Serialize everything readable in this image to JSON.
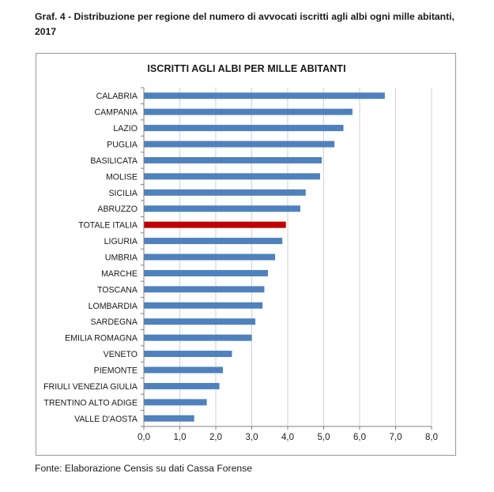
{
  "caption": {
    "line1": "Graf. 4 - Distribuzione per regione del numero di avvocati iscritti agli albi ogni mille abitanti,",
    "line2": "2017"
  },
  "source": "Fonte: Elaborazione Censis su dati Cassa Forense",
  "colors": {
    "bar": "#4f81bd",
    "highlight": "#c00000",
    "grid": "#d0d0d0",
    "axis": "#808080"
  },
  "chart_data": {
    "type": "bar",
    "orientation": "horizontal",
    "title": "ISCRITTI AGLI ALBI PER MILLE ABITANTI",
    "xlabel": "",
    "ylabel": "",
    "xlim": [
      0,
      8
    ],
    "grid": true,
    "legend": "none",
    "x_ticks": [
      "0,0",
      "1,0",
      "2,0",
      "3,0",
      "4,0",
      "5,0",
      "6,0",
      "7,0",
      "8,0"
    ],
    "categories": [
      "CALABRIA",
      "CAMPANIA",
      "LAZIO",
      "PUGLIA",
      "BASILICATA",
      "MOLISE",
      "SICILIA",
      "ABRUZZO",
      "TOTALE ITALIA",
      "LIGURIA",
      "UMBRIA",
      "MARCHE",
      "TOSCANA",
      "LOMBARDIA",
      "SARDEGNA",
      "EMILIA ROMAGNA",
      "VENETO",
      "PIEMONTE",
      "FRIULI VENEZIA GIULIA",
      "TRENTINO ALTO ADIGE",
      "VALLE D'AOSTA"
    ],
    "values": [
      6.7,
      5.8,
      5.55,
      5.3,
      4.95,
      4.9,
      4.5,
      4.35,
      3.95,
      3.85,
      3.65,
      3.45,
      3.35,
      3.3,
      3.1,
      3.0,
      2.45,
      2.2,
      2.1,
      1.75,
      1.4
    ],
    "highlight_category": "TOTALE ITALIA"
  }
}
